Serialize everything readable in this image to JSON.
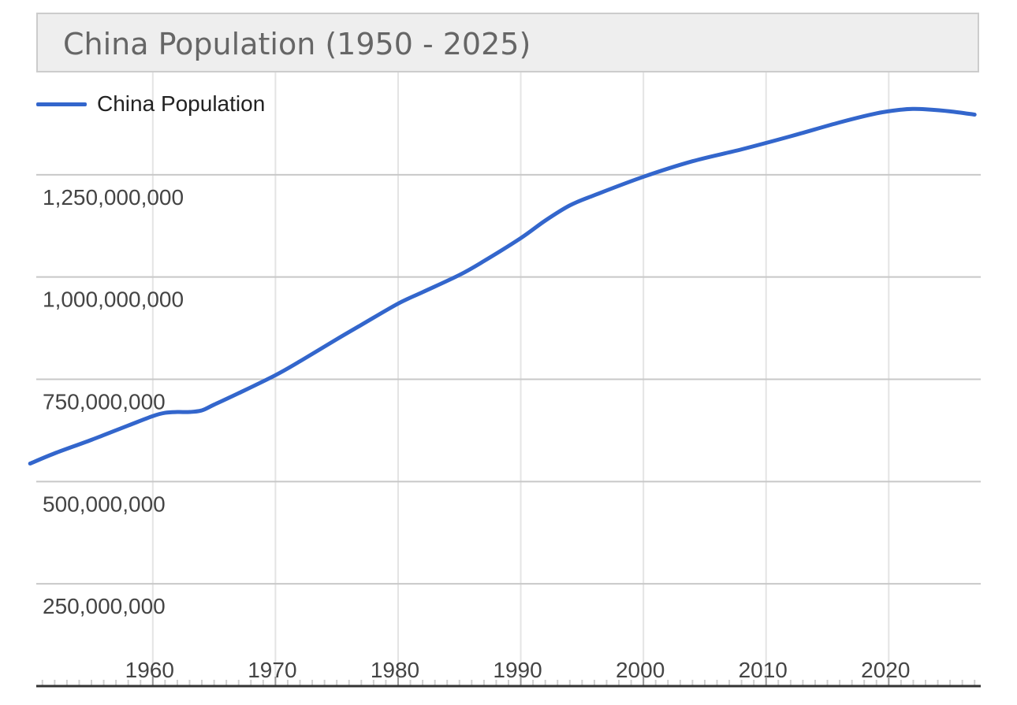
{
  "chart_data": {
    "type": "line",
    "title": "China Population (1950 - 2025)",
    "xlabel": "",
    "ylabel": "",
    "xlim": [
      1950.5,
      2027.5
    ],
    "ylim": [
      0,
      1500000000
    ],
    "x_ticks": [
      1960,
      1970,
      1980,
      1990,
      2000,
      2010,
      2020
    ],
    "x_tick_labels": [
      "1960",
      "1970",
      "1980",
      "1990",
      "2000",
      "2010",
      "2020"
    ],
    "y_ticks": [
      250000000,
      500000000,
      750000000,
      1000000000,
      1250000000
    ],
    "y_tick_labels": [
      "250,000,000",
      "500,000,000",
      "750,000,000",
      "1,000,000,000",
      "1,250,000,000"
    ],
    "grid": true,
    "legend": {
      "position": "top-left"
    },
    "series": [
      {
        "name": "China Population",
        "color": "#3366cc",
        "x": [
          1950,
          1952,
          1955,
          1958,
          1960,
          1961,
          1962,
          1963,
          1964,
          1965,
          1967,
          1970,
          1972,
          1975,
          1977,
          1980,
          1982,
          1985,
          1987,
          1990,
          1992,
          1994,
          1996,
          2000,
          2004,
          2008,
          2012,
          2016,
          2019,
          2021,
          2022,
          2023,
          2025,
          2027
        ],
        "values": [
          544000000,
          569000000,
          602000000,
          637000000,
          660000000,
          668000000,
          670000000,
          670000000,
          674000000,
          688000000,
          716000000,
          760000000,
          794000000,
          848000000,
          883000000,
          935000000,
          963000000,
          1005000000,
          1039000000,
          1095000000,
          1138000000,
          1175000000,
          1200000000,
          1245000000,
          1283000000,
          1312000000,
          1344000000,
          1378000000,
          1400000000,
          1409000000,
          1411000000,
          1410000000,
          1405000000,
          1397000000
        ]
      }
    ]
  }
}
